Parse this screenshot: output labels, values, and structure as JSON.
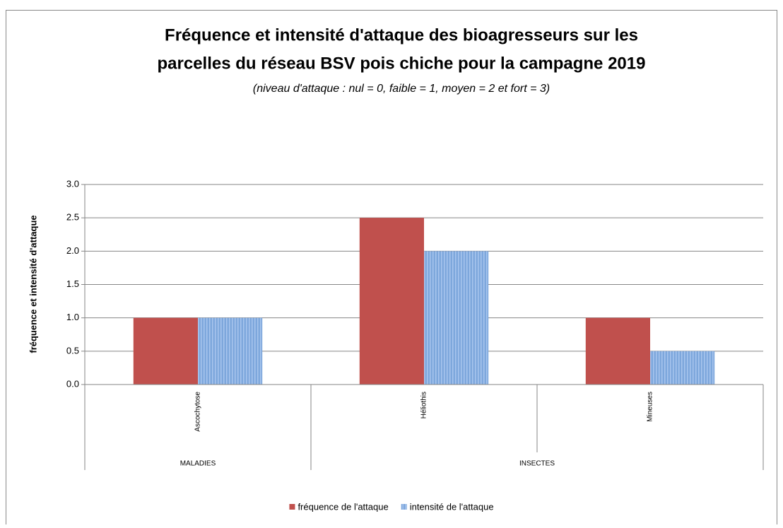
{
  "chart_data": {
    "type": "bar",
    "title": [
      "Fréquence et intensité d'attaque des bioagresseurs sur les",
      "parcelles du réseau BSV pois chiche pour la campagne 2019"
    ],
    "subtitle": "(niveau d'attaque : nul = 0, faible = 1, moyen = 2 et fort = 3)",
    "ylabel": "fréquence et intensité d'attaque",
    "categories": [
      "Ascochytose",
      "Héliothis",
      "Mineuses"
    ],
    "groups": [
      {
        "label": "MALADIES",
        "count": 1
      },
      {
        "label": "INSECTES",
        "count": 2
      }
    ],
    "series": [
      {
        "name": "fréquence de l'attaque",
        "color": "#c0504d",
        "values": [
          1,
          2.5,
          1
        ]
      },
      {
        "name": "intensité de l'attaque",
        "color": "#7da7dc",
        "pattern": "vertical-stripes",
        "values": [
          1,
          2,
          0.5
        ]
      }
    ],
    "ylim": [
      0,
      3
    ],
    "yticks": [
      {
        "value": 0,
        "label": "0.0"
      },
      {
        "value": 0.5,
        "label": "0.5"
      },
      {
        "value": 1,
        "label": "1.0"
      },
      {
        "value": 1.5,
        "label": "1.5"
      },
      {
        "value": 2,
        "label": "2.0"
      },
      {
        "value": 2.5,
        "label": "2.5"
      },
      {
        "value": 3,
        "label": "3.0"
      }
    ],
    "grid": true,
    "legend": "bottom"
  }
}
